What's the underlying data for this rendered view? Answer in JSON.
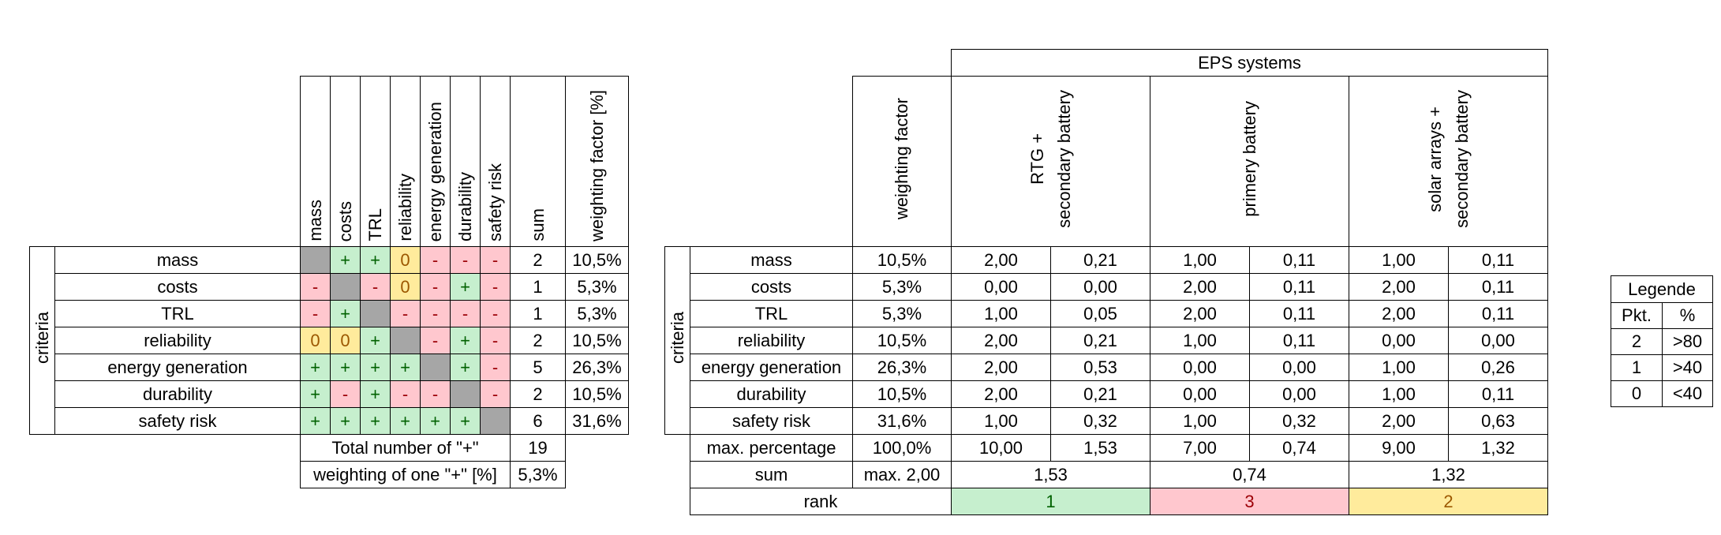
{
  "pairwise": {
    "criteria_label": "criteria",
    "columns": [
      "mass",
      "costs",
      "TRL",
      "reliability",
      "energy generation",
      "durability",
      "safety risk"
    ],
    "sum_header": "sum",
    "weight_header": "weighting factor [%]",
    "rows": [
      {
        "name": "mass",
        "cells": [
          "",
          "+",
          "+",
          "0",
          "-",
          "-",
          "-"
        ],
        "sum": "2",
        "weight": "10,5%"
      },
      {
        "name": "costs",
        "cells": [
          "-",
          "",
          "-",
          "0",
          "-",
          "+",
          "-"
        ],
        "sum": "1",
        "weight": "5,3%"
      },
      {
        "name": "TRL",
        "cells": [
          "-",
          "+",
          "",
          "-",
          "-",
          "-",
          "-"
        ],
        "sum": "1",
        "weight": "5,3%"
      },
      {
        "name": "reliability",
        "cells": [
          "0",
          "0",
          "+",
          "",
          "-",
          "+",
          "-"
        ],
        "sum": "2",
        "weight": "10,5%"
      },
      {
        "name": "energy generation",
        "cells": [
          "+",
          "+",
          "+",
          "+",
          "",
          "+",
          "-"
        ],
        "sum": "5",
        "weight": "26,3%"
      },
      {
        "name": "durability",
        "cells": [
          "+",
          "-",
          "+",
          "-",
          "-",
          "",
          "-"
        ],
        "sum": "2",
        "weight": "10,5%"
      },
      {
        "name": "safety risk",
        "cells": [
          "+",
          "+",
          "+",
          "+",
          "+",
          "+",
          ""
        ],
        "sum": "6",
        "weight": "31,6%"
      }
    ],
    "total_label": "Total number of \"+\"",
    "total_value": "19",
    "one_plus_label": "weighting of one \"+\" [%]",
    "one_plus_value": "5,3%"
  },
  "eps": {
    "title": "EPS systems",
    "criteria_label": "criteria",
    "weight_header": "weighting factor",
    "systems": [
      "RTG +\nsecondary battery",
      "primery battery",
      "solar arrays +\nsecondary battery"
    ],
    "rows": [
      {
        "name": "mass",
        "weight": "10,5%",
        "vals": [
          "2,00",
          "0,21",
          "1,00",
          "0,11",
          "1,00",
          "0,11"
        ]
      },
      {
        "name": "costs",
        "weight": "5,3%",
        "vals": [
          "0,00",
          "0,00",
          "2,00",
          "0,11",
          "2,00",
          "0,11"
        ]
      },
      {
        "name": "TRL",
        "weight": "5,3%",
        "vals": [
          "1,00",
          "0,05",
          "2,00",
          "0,11",
          "2,00",
          "0,11"
        ]
      },
      {
        "name": "reliability",
        "weight": "10,5%",
        "vals": [
          "2,00",
          "0,21",
          "1,00",
          "0,11",
          "0,00",
          "0,00"
        ]
      },
      {
        "name": "energy generation",
        "weight": "26,3%",
        "vals": [
          "2,00",
          "0,53",
          "0,00",
          "0,00",
          "1,00",
          "0,26"
        ]
      },
      {
        "name": "durability",
        "weight": "10,5%",
        "vals": [
          "2,00",
          "0,21",
          "0,00",
          "0,00",
          "1,00",
          "0,11"
        ]
      },
      {
        "name": "safety risk",
        "weight": "31,6%",
        "vals": [
          "1,00",
          "0,32",
          "1,00",
          "0,32",
          "2,00",
          "0,63"
        ]
      }
    ],
    "max_row": {
      "name": "max. percentage",
      "weight": "100,0%",
      "vals": [
        "10,00",
        "1,53",
        "7,00",
        "0,74",
        "9,00",
        "1,32"
      ]
    },
    "sum_row": {
      "name": "sum",
      "weight": "max. 2,00",
      "vals": [
        "1,53",
        "0,74",
        "1,32"
      ]
    },
    "rank_row": {
      "name": "rank",
      "vals": [
        "1",
        "3",
        "2"
      ]
    }
  },
  "legend": {
    "title": "Legende",
    "headers": [
      "Pkt.",
      "%"
    ],
    "rows": [
      [
        "2",
        ">80"
      ],
      [
        "1",
        ">40"
      ],
      [
        "0",
        "<40"
      ]
    ]
  },
  "colors": {
    "plus": "#c6efce",
    "minus": "#ffc7ce",
    "zero": "#ffeb9c",
    "diagonal": "#a6a6a6"
  }
}
